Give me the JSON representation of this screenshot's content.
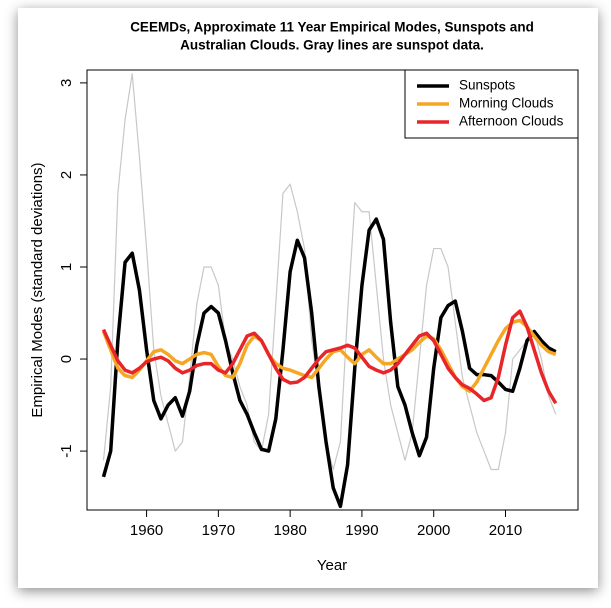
{
  "chart_data": {
    "type": "line",
    "title": "CEEMDs, Approximate 11 Year Empirical Modes, Sunspots and",
    "subtitle": "Australian Clouds. Gray lines are sunspot data.",
    "x_label": "Year",
    "y_label": "Empirical Modes (standard deviations)",
    "x": [
      1954,
      1955,
      1956,
      1957,
      1958,
      1959,
      1960,
      1961,
      1962,
      1963,
      1964,
      1965,
      1966,
      1967,
      1968,
      1969,
      1970,
      1971,
      1972,
      1973,
      1974,
      1975,
      1976,
      1977,
      1978,
      1979,
      1980,
      1981,
      1982,
      1983,
      1984,
      1985,
      1986,
      1987,
      1988,
      1989,
      1990,
      1991,
      1992,
      1993,
      1994,
      1995,
      1996,
      1997,
      1998,
      1999,
      2000,
      2001,
      2002,
      2003,
      2004,
      2005,
      2006,
      2007,
      2008,
      2009,
      2010,
      2011,
      2012,
      2013,
      2014,
      2015,
      2016,
      2017
    ],
    "series": [
      {
        "color": "#c8c8c8",
        "values": [
          -1.1,
          -0.3,
          1.8,
          2.6,
          3.1,
          2.2,
          1.2,
          0.1,
          -0.4,
          -0.7,
          -1.0,
          -0.9,
          -0.2,
          0.6,
          1.0,
          1.0,
          0.8,
          0.2,
          0.0,
          -0.3,
          -0.5,
          -0.9,
          -1.0,
          -0.6,
          0.6,
          1.8,
          1.9,
          1.6,
          1.2,
          0.2,
          -0.3,
          -0.9,
          -1.2,
          -0.9,
          0.5,
          1.7,
          1.6,
          1.6,
          0.8,
          0.0,
          -0.5,
          -0.8,
          -1.1,
          -0.8,
          0.0,
          0.8,
          1.2,
          1.2,
          1.0,
          0.4,
          -0.2,
          -0.5,
          -0.8,
          -1.0,
          -1.2,
          -1.2,
          -0.8,
          0.0,
          0.1,
          0.2,
          0.3,
          0.0,
          -0.4,
          -0.6
        ]
      },
      {
        "name": "Sunspots",
        "color": "#000000",
        "values": [
          -1.28,
          -1.0,
          0.2,
          1.05,
          1.15,
          0.75,
          0.1,
          -0.45,
          -0.65,
          -0.5,
          -0.42,
          -0.62,
          -0.35,
          0.15,
          0.5,
          0.57,
          0.5,
          0.2,
          -0.15,
          -0.45,
          -0.6,
          -0.8,
          -0.98,
          -1.0,
          -0.65,
          0.1,
          0.95,
          1.29,
          1.1,
          0.5,
          -0.3,
          -0.9,
          -1.4,
          -1.6,
          -1.15,
          -0.1,
          0.8,
          1.4,
          1.52,
          1.3,
          0.4,
          -0.3,
          -0.5,
          -0.8,
          -1.05,
          -0.85,
          -0.1,
          0.45,
          0.58,
          0.63,
          0.3,
          -0.1,
          -0.17,
          -0.17,
          -0.18,
          -0.25,
          -0.33,
          -0.35,
          -0.1,
          0.2,
          0.3,
          0.2,
          0.12,
          0.08
        ]
      },
      {
        "name": "Morning Clouds",
        "color": "#f5a623",
        "values": [
          0.3,
          0.1,
          -0.1,
          -0.18,
          -0.2,
          -0.12,
          -0.02,
          0.08,
          0.1,
          0.05,
          -0.02,
          -0.05,
          0.0,
          0.05,
          0.07,
          0.05,
          -0.08,
          -0.18,
          -0.2,
          -0.05,
          0.15,
          0.25,
          0.2,
          0.05,
          -0.05,
          -0.1,
          -0.12,
          -0.15,
          -0.18,
          -0.2,
          -0.1,
          0.0,
          0.08,
          0.1,
          0.02,
          -0.05,
          0.05,
          0.1,
          0.02,
          -0.05,
          -0.05,
          0.0,
          0.05,
          0.1,
          0.18,
          0.25,
          0.22,
          0.1,
          -0.05,
          -0.2,
          -0.3,
          -0.35,
          -0.25,
          -0.1,
          0.05,
          0.2,
          0.33,
          0.4,
          0.42,
          0.35,
          0.25,
          0.15,
          0.08,
          0.05
        ]
      },
      {
        "name": "Afternoon Clouds",
        "color": "#e8262a",
        "values": [
          0.32,
          0.15,
          -0.02,
          -0.12,
          -0.15,
          -0.1,
          -0.03,
          0.0,
          0.02,
          -0.02,
          -0.1,
          -0.15,
          -0.12,
          -0.07,
          -0.05,
          -0.05,
          -0.12,
          -0.15,
          -0.05,
          0.1,
          0.25,
          0.28,
          0.2,
          0.05,
          -0.1,
          -0.22,
          -0.26,
          -0.25,
          -0.2,
          -0.1,
          0.0,
          0.08,
          0.1,
          0.12,
          0.15,
          0.12,
          0.02,
          -0.08,
          -0.12,
          -0.15,
          -0.12,
          -0.05,
          0.05,
          0.15,
          0.25,
          0.28,
          0.2,
          0.05,
          -0.1,
          -0.2,
          -0.28,
          -0.32,
          -0.38,
          -0.45,
          -0.42,
          -0.2,
          0.15,
          0.45,
          0.52,
          0.35,
          0.1,
          -0.15,
          -0.35,
          -0.48
        ]
      }
    ],
    "xlim": [
      1951.7,
      2020.1
    ],
    "xticks": [
      1960,
      1970,
      1980,
      1990,
      2000,
      2010
    ],
    "ylim": [
      -1.64,
      3.14
    ],
    "yticks": [
      -1,
      0,
      1,
      2,
      3
    ],
    "legend": "topright"
  }
}
